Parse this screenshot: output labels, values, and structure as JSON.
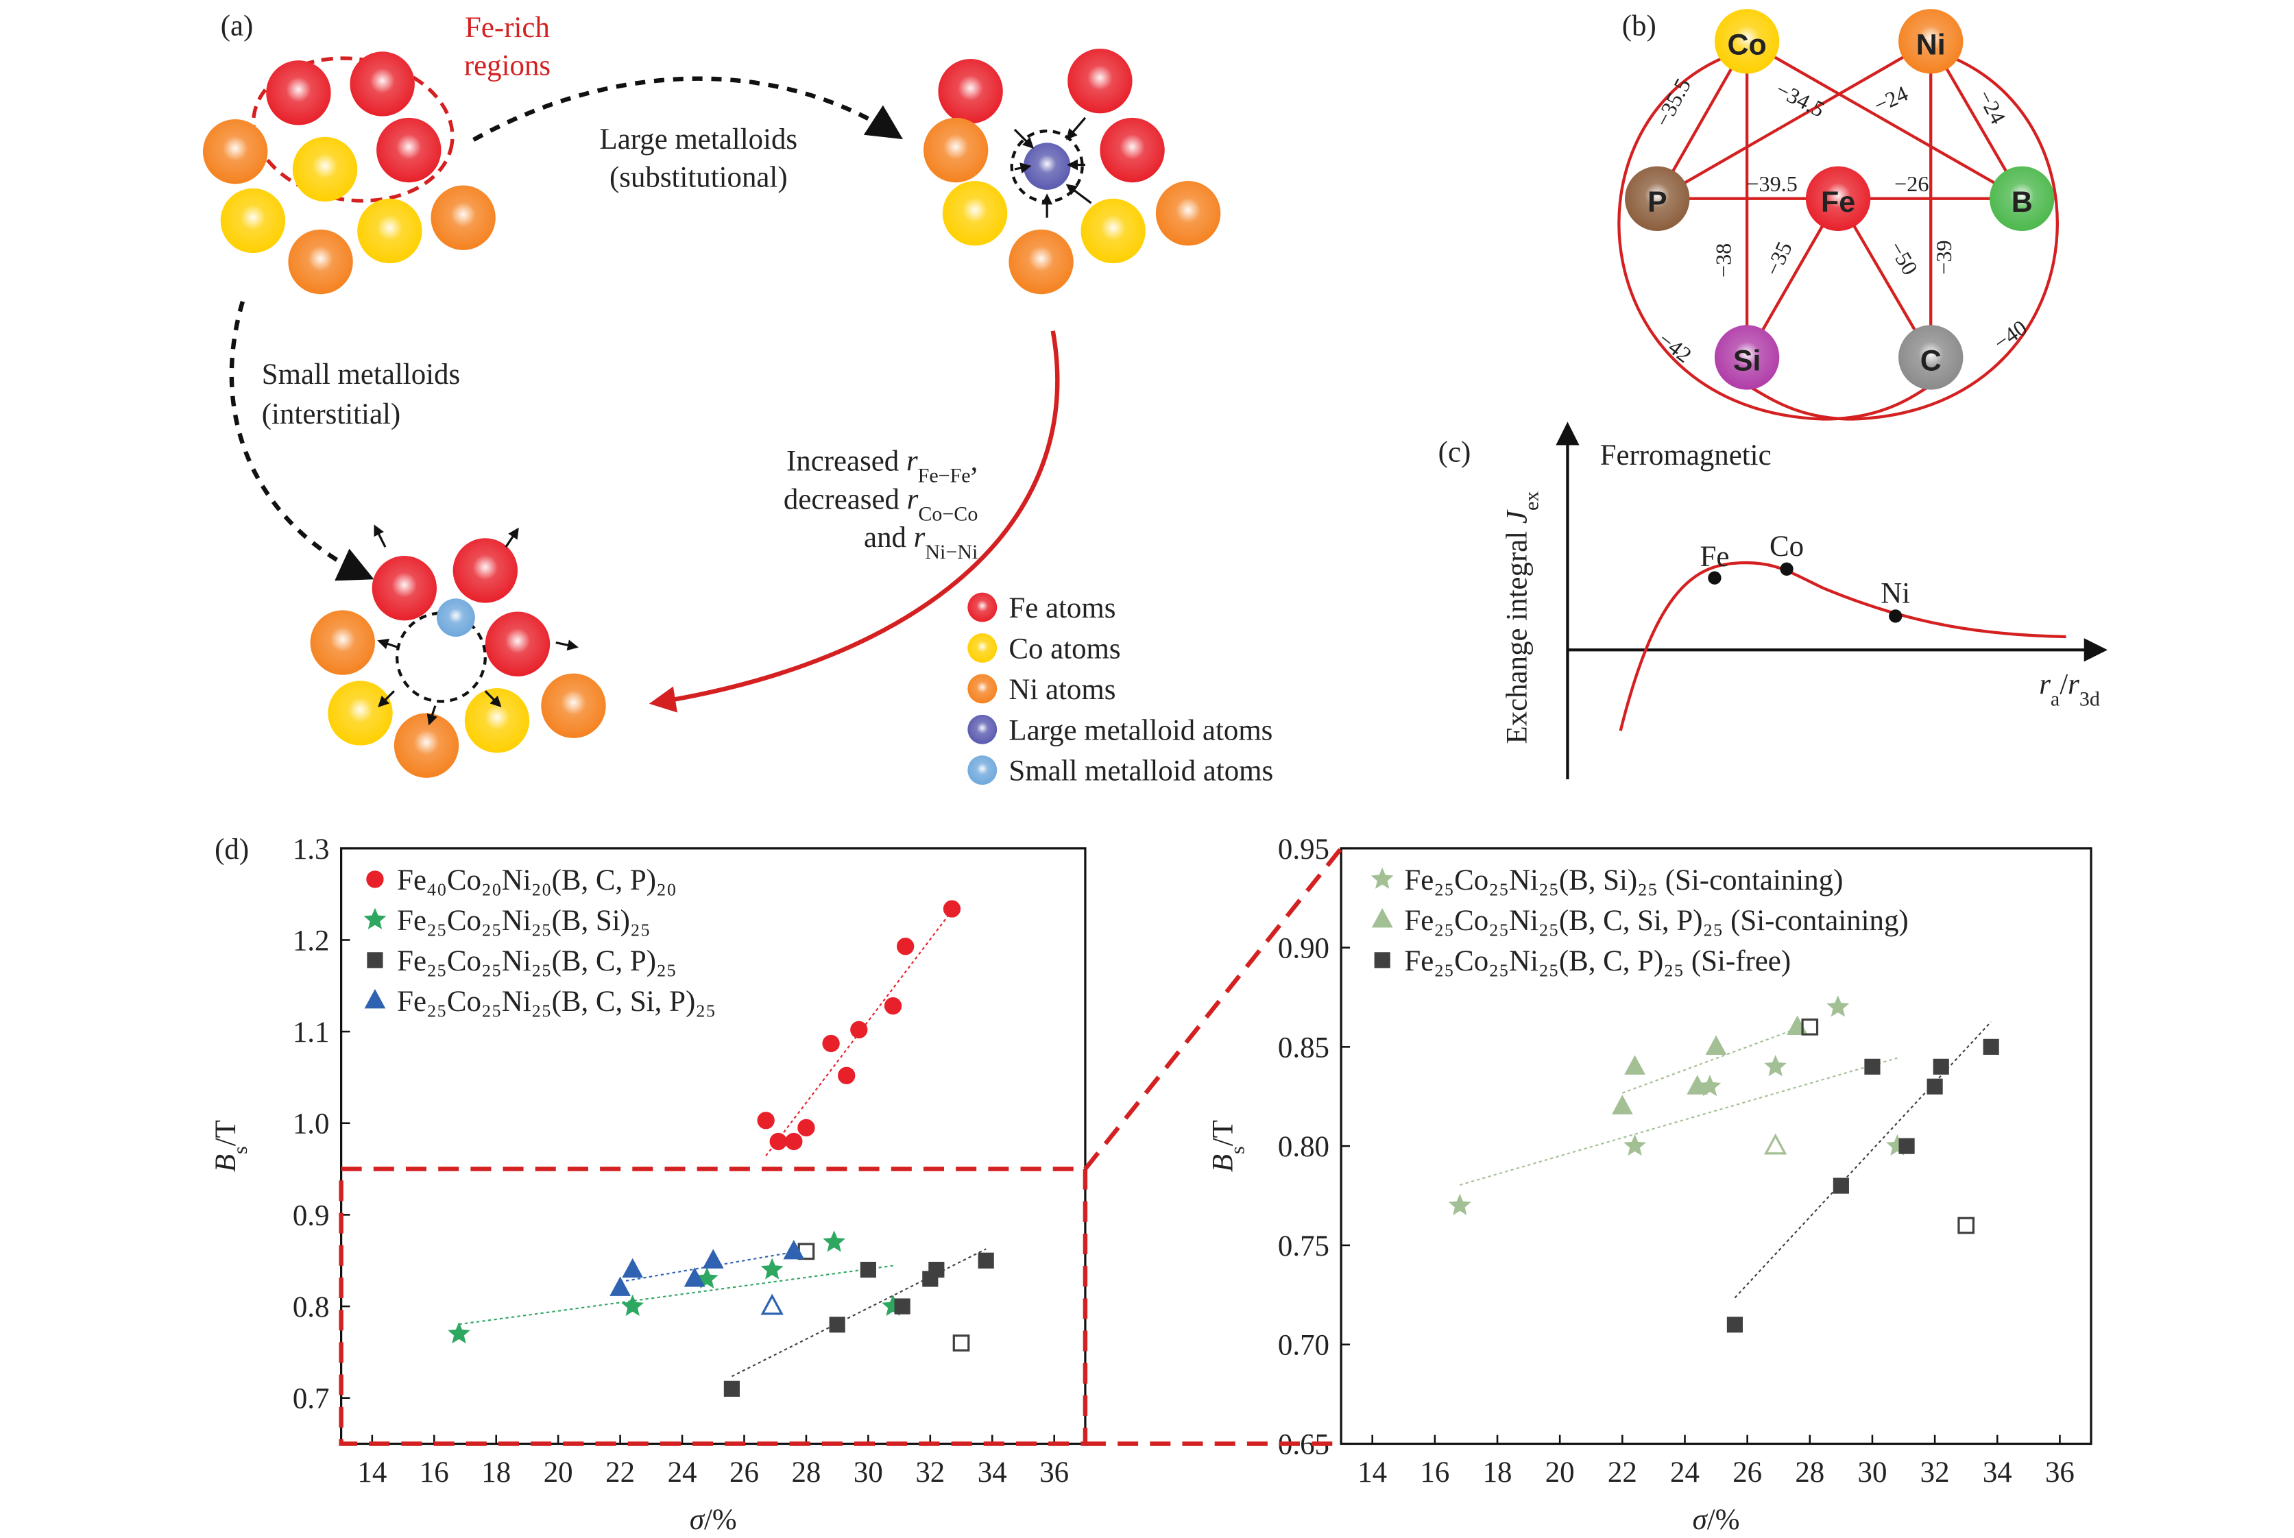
{
  "panel_a": {
    "label": "(a)",
    "fe_rich": [
      "Fe-rich",
      "regions"
    ],
    "large": [
      "Large metalloids",
      "(substitutional)"
    ],
    "small": [
      "Small metalloids",
      "(interstitial)"
    ],
    "annotation": [
      [
        {
          "text": "Increased "
        },
        {
          "text": "r",
          "italic": true
        },
        {
          "text": "Fe−Fe",
          "sub": true
        },
        {
          "text": ","
        }
      ],
      [
        {
          "text": "decreased "
        },
        {
          "text": "r",
          "italic": true
        },
        {
          "text": "Co−Co",
          "sub": true
        }
      ],
      [
        {
          "text": "and "
        },
        {
          "text": "r",
          "italic": true
        },
        {
          "text": "Ni−Ni",
          "sub": true
        }
      ]
    ],
    "legend": [
      {
        "label": "Fe atoms",
        "color": "#e8202a"
      },
      {
        "label": "Co atoms",
        "color": "#ffd000"
      },
      {
        "label": "Ni atoms",
        "color": "#f58220"
      },
      {
        "label": "Large metalloid atoms",
        "color": "#5a5ab0"
      },
      {
        "label": "Small metalloid atoms",
        "color": "#6fa8dc"
      }
    ]
  },
  "panel_b": {
    "label": "(b)",
    "nodes": [
      {
        "label": "Co",
        "color": "#ffd000"
      },
      {
        "label": "Ni",
        "color": "#f58220"
      },
      {
        "label": "P",
        "color": "#8b5e3c"
      },
      {
        "label": "Fe",
        "color": "#e8202a"
      },
      {
        "label": "B",
        "color": "#4cb84c"
      },
      {
        "label": "Si",
        "color": "#b03ca8"
      },
      {
        "label": "C",
        "color": "#8a8a8a"
      }
    ],
    "edges": [
      "−35.5",
      "−34.5",
      "−24",
      "−24",
      "−39.5",
      "−26",
      "−38",
      "−35",
      "−50",
      "−39",
      "−42",
      "−40"
    ]
  },
  "panel_c": {
    "label": "(c)",
    "title": "Ferromagnetic",
    "y_label": [
      {
        "text": "Exchange integral "
      },
      {
        "text": "J",
        "italic": true
      },
      {
        "text": "ex",
        "sub": true
      }
    ],
    "x_label": [
      {
        "text": "r",
        "italic": true
      },
      {
        "text": "a",
        "sub": true
      },
      {
        "text": "/"
      },
      {
        "text": "r",
        "italic": true
      },
      {
        "text": "3d",
        "sub": true
      }
    ],
    "points": [
      "Fe",
      "Co",
      "Ni"
    ]
  },
  "panel_d": {
    "label": "(d)"
  },
  "chart_data": [
    {
      "type": "scatter",
      "x_label": [
        {
          "text": "σ",
          "italic": true
        },
        {
          "text": "/%"
        }
      ],
      "y_label": [
        {
          "text": "B",
          "italic": true
        },
        {
          "text": "s",
          "sub": true
        },
        {
          "text": "/T"
        }
      ],
      "xlim": [
        13,
        37
      ],
      "xticks": [
        14,
        16,
        18,
        20,
        22,
        24,
        26,
        28,
        30,
        32,
        34,
        36
      ],
      "ylim": [
        0.65,
        1.3
      ],
      "yticks": [
        0.7,
        0.8,
        0.9,
        {
          "value": 1,
          "label": "1.0"
        },
        1.1,
        1.2,
        1.3
      ],
      "series": [
        {
          "name": "Fe₄₀Co₂₀Ni₂₀(B, C, P)₂₀",
          "color": "#e8202a",
          "marker": "circle",
          "x": [
            26.7,
            27.1,
            27.6,
            28.0,
            28.8,
            29.3,
            29.7,
            30.8,
            31.2,
            32.7
          ],
          "values": [
            1.003,
            0.98,
            0.98,
            0.995,
            1.087,
            1.052,
            1.102,
            1.128,
            1.193,
            1.234
          ],
          "hollow": [
            false,
            false,
            false,
            false,
            false,
            false,
            false,
            false,
            false,
            false
          ]
        },
        {
          "name": "Fe₂₅Co₂₅Ni₂₅(B, Si)₂₅",
          "color": "#2ea860",
          "marker": "star",
          "x": [
            16.8,
            22.4,
            24.8,
            26.9,
            28.9,
            30.8
          ],
          "values": [
            0.77,
            0.8,
            0.83,
            0.84,
            0.87,
            0.8
          ],
          "hollow": [
            false,
            false,
            false,
            false,
            false,
            false
          ]
        },
        {
          "name": "Fe₂₅Co₂₅Ni₂₅(B, C, P)₂₅",
          "color": "#404040",
          "marker": "square",
          "x": [
            25.6,
            28.0,
            29.0,
            30.0,
            31.1,
            32.0,
            32.2,
            33.0,
            33.8
          ],
          "values": [
            0.71,
            0.86,
            0.78,
            0.84,
            0.8,
            0.83,
            0.84,
            0.76,
            0.85
          ],
          "hollow": [
            false,
            true,
            false,
            false,
            false,
            false,
            false,
            true,
            false
          ]
        },
        {
          "name": "Fe₂₅Co₂₅Ni₂₅(B, C, Si, P)₂₅",
          "color": "#2f62b0",
          "marker": "triangle",
          "x": [
            22.0,
            22.4,
            24.4,
            25.0,
            26.9,
            27.6
          ],
          "values": [
            0.82,
            0.84,
            0.83,
            0.85,
            0.8,
            0.86
          ],
          "hollow": [
            false,
            false,
            false,
            false,
            true,
            false
          ]
        }
      ]
    },
    {
      "type": "scatter",
      "x_label": [
        {
          "text": "σ",
          "italic": true
        },
        {
          "text": "/%"
        }
      ],
      "y_label": [
        {
          "text": "B",
          "italic": true
        },
        {
          "text": "s",
          "sub": true
        },
        {
          "text": "/T"
        }
      ],
      "xlim": [
        13,
        37
      ],
      "xticks": [
        14,
        16,
        18,
        20,
        22,
        24,
        26,
        28,
        30,
        32,
        34,
        36
      ],
      "ylim": [
        0.65,
        0.95
      ],
      "yticks": [
        0.65,
        {
          "value": 0.7,
          "label": "0.70"
        },
        0.75,
        {
          "value": 0.8,
          "label": "0.80"
        },
        0.85,
        {
          "value": 0.9,
          "label": "0.90"
        },
        0.95
      ],
      "series": [
        {
          "name": "Fe₂₅Co₂₅Ni₂₅(B, Si)₂₅ (Si-containing)",
          "color": "#a3bf94",
          "marker": "star",
          "x": [
            16.8,
            22.4,
            24.8,
            26.9,
            28.9,
            30.8
          ],
          "values": [
            0.77,
            0.8,
            0.83,
            0.84,
            0.87,
            0.8
          ],
          "hollow": [
            false,
            false,
            false,
            false,
            false,
            false
          ]
        },
        {
          "name": "Fe₂₅Co₂₅Ni₂₅(B, C, Si, P)₂₅ (Si-containing)",
          "color": "#a3bf94",
          "marker": "triangle",
          "x": [
            22.0,
            22.4,
            24.4,
            25.0,
            26.9,
            27.6
          ],
          "values": [
            0.82,
            0.84,
            0.83,
            0.85,
            0.8,
            0.86
          ],
          "hollow": [
            false,
            false,
            false,
            false,
            true,
            false
          ]
        },
        {
          "name": "Fe₂₅Co₂₅Ni₂₅(B, C, P)₂₅ (Si-free)",
          "color": "#404040",
          "marker": "square",
          "x": [
            25.6,
            28.0,
            29.0,
            30.0,
            31.1,
            32.0,
            32.2,
            33.0,
            33.8
          ],
          "values": [
            0.71,
            0.86,
            0.78,
            0.84,
            0.8,
            0.83,
            0.84,
            0.76,
            0.85
          ],
          "hollow": [
            false,
            true,
            false,
            false,
            false,
            false,
            false,
            true,
            false
          ]
        }
      ]
    }
  ]
}
